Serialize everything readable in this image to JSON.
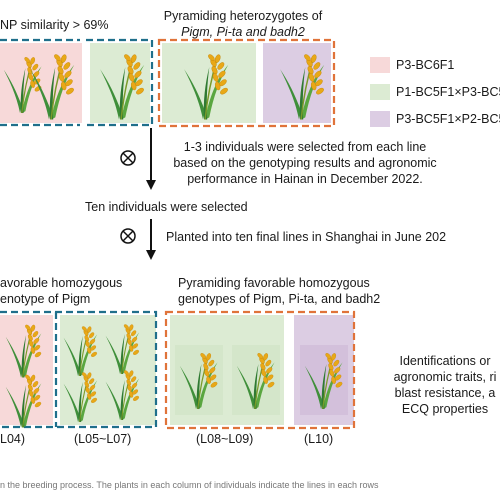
{
  "top": {
    "snp_similarity": "NP similarity > 69%",
    "pyramiding_heterozygotes_line1": "Pyramiding heterozygotes of",
    "pyramiding_heterozygotes_line2": "Pigm, Pi-ta and badh2"
  },
  "legend": {
    "items": [
      {
        "label": "P3-BC6F1",
        "color": "#f7d9d9"
      },
      {
        "label": "P1-BC5F1×P3-BC5F",
        "color": "#dcebd3"
      },
      {
        "label": "P3-BC5F1×P2-BC5F",
        "color": "#dccde3"
      }
    ]
  },
  "steps": {
    "selection_line1": "1-3 individuals were selected from each line",
    "selection_line2": "based on the genotyping results and agronomic",
    "selection_line3": "performance in Hainan in December 2022.",
    "ten_selected": "Ten individuals were selected",
    "planted": "Planted into ten final lines in Shanghai in June 202"
  },
  "bottom": {
    "left_header_line1": "avorable homozygous",
    "left_header_line2": "enotype of Pigm",
    "right_header_line1": "Pyramiding favorable homozygous",
    "right_header_line2": "genotypes of Pigm, Pi-ta, and badh2",
    "identification_line1": "Identifications or",
    "identification_line2": "agronomic traits, ri",
    "identification_line3": "blast resistance, a",
    "identification_line4": "ECQ properties",
    "labels": [
      "L04)",
      "(L05~L07)",
      "(L08~L09)",
      "(L10)"
    ]
  },
  "footer": "n the breeding process. The plants in each column of individuals indicate the lines in each rows"
}
